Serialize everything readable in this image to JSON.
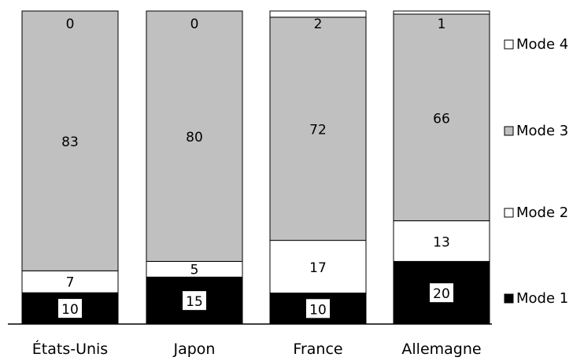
{
  "chart_data": {
    "type": "bar",
    "stacked": true,
    "categories": [
      "États-Unis",
      "Japon",
      "France",
      "Allemagne"
    ],
    "series": [
      {
        "name": "Mode 1",
        "values": [
          10,
          15,
          10,
          20
        ],
        "color": "#000000"
      },
      {
        "name": "Mode 2",
        "values": [
          7,
          5,
          17,
          13
        ],
        "color": "#ffffff"
      },
      {
        "name": "Mode 3",
        "values": [
          83,
          80,
          72,
          66
        ],
        "color": "#c0c0c0"
      },
      {
        "name": "Mode 4",
        "values": [
          0,
          0,
          2,
          1
        ],
        "color": "#ffffff"
      }
    ],
    "legend_position": "right",
    "grid": false
  }
}
